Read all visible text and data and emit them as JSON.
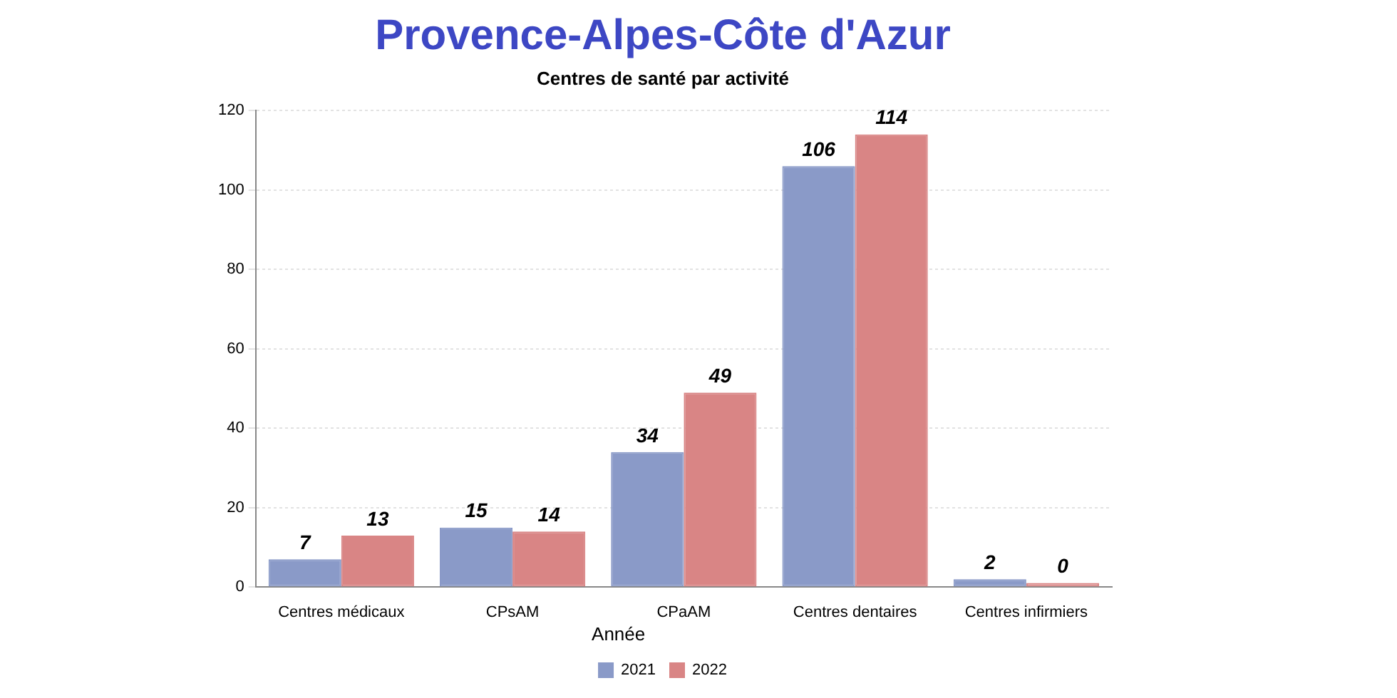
{
  "chart_data": {
    "type": "bar",
    "title": "Provence-Alpes-Côte d'Azur",
    "subtitle": "Centres de santé par activité",
    "categories": [
      "Centres médicaux",
      "CPsAM",
      "CPaAM",
      "Centres dentaires",
      "Centres infirmiers"
    ],
    "series": [
      {
        "name": "2021",
        "color": "#8a9ac8",
        "values": [
          7,
          15,
          34,
          106,
          2
        ]
      },
      {
        "name": "2022",
        "color": "#d98585",
        "values": [
          13,
          14,
          49,
          114,
          0
        ]
      }
    ],
    "ylim": [
      0,
      120
    ],
    "yticks": [
      0,
      20,
      40,
      60,
      80,
      100,
      120
    ],
    "grid": "y",
    "legend": "bottom",
    "legend_title": "Année",
    "data_labels": true
  }
}
